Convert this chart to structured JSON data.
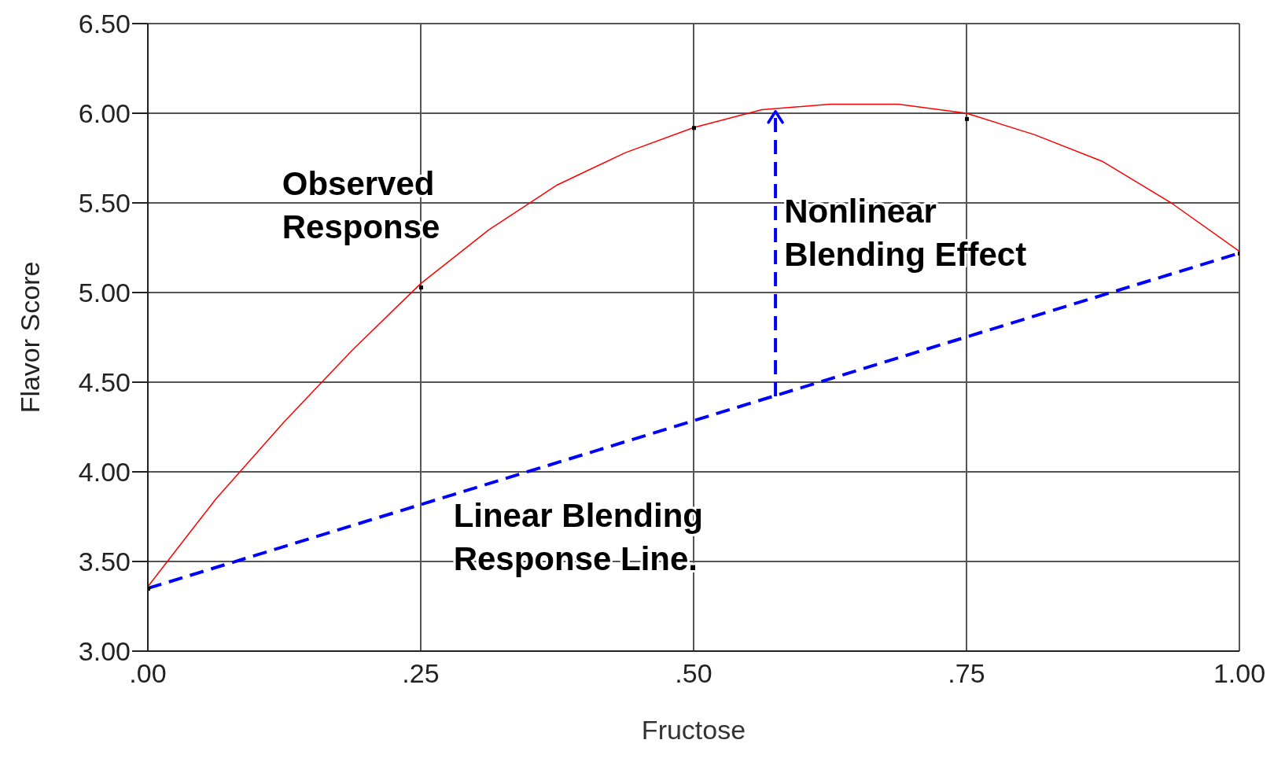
{
  "chart_data": {
    "type": "line",
    "xlabel": "Fructose",
    "ylabel": "Flavor Score",
    "xlim": [
      0,
      1
    ],
    "xticks": [
      {
        "value": 0,
        "label": ".00"
      },
      {
        "value": 0.25,
        "label": ".25"
      },
      {
        "value": 0.5,
        "label": ".50"
      },
      {
        "value": 0.75,
        "label": ".75"
      },
      {
        "value": 1,
        "label": "1.00"
      }
    ],
    "ylim": [
      3,
      6.5
    ],
    "yticks": [
      {
        "value": 3,
        "label": "3.00"
      },
      {
        "value": 3.5,
        "label": "3.50"
      },
      {
        "value": 4,
        "label": "4.00"
      },
      {
        "value": 4.5,
        "label": "4.50"
      },
      {
        "value": 5,
        "label": "5.00"
      },
      {
        "value": 5.5,
        "label": "5.50"
      },
      {
        "value": 6,
        "label": "6.00"
      },
      {
        "value": 6.5,
        "label": "6.50"
      }
    ],
    "grid": true,
    "series": [
      {
        "color": "#ff0000",
        "line_style": "solid",
        "marker": "none",
        "x": [
          0,
          0.0625,
          0.125,
          0.1875,
          0.25,
          0.3125,
          0.375,
          0.4375,
          0.5,
          0.5625,
          0.625,
          0.6875,
          0.75,
          0.8125,
          0.875,
          0.9375,
          1
        ],
        "values": [
          3.36,
          3.85,
          4.28,
          4.68,
          5.05,
          5.35,
          5.6,
          5.78,
          5.92,
          6.02,
          6.05,
          6.05,
          6.0,
          5.88,
          5.73,
          5.5,
          5.23
        ]
      },
      {
        "type": "scatter",
        "color": "#000000",
        "marker": "square",
        "x": [
          0,
          0.25,
          0.5,
          0.75,
          1
        ],
        "values": [
          3.35,
          5.03,
          5.92,
          5.97,
          5.22
        ]
      },
      {
        "color": "#0000ff",
        "line_style": "dashed",
        "marker": "none",
        "x": [
          0,
          1
        ],
        "values": [
          3.35,
          5.22
        ]
      }
    ],
    "annotations": [
      "Observed\nResponse",
      "Nonlinear\nBlending Effect",
      "Linear Blending\nResponse Line."
    ]
  }
}
